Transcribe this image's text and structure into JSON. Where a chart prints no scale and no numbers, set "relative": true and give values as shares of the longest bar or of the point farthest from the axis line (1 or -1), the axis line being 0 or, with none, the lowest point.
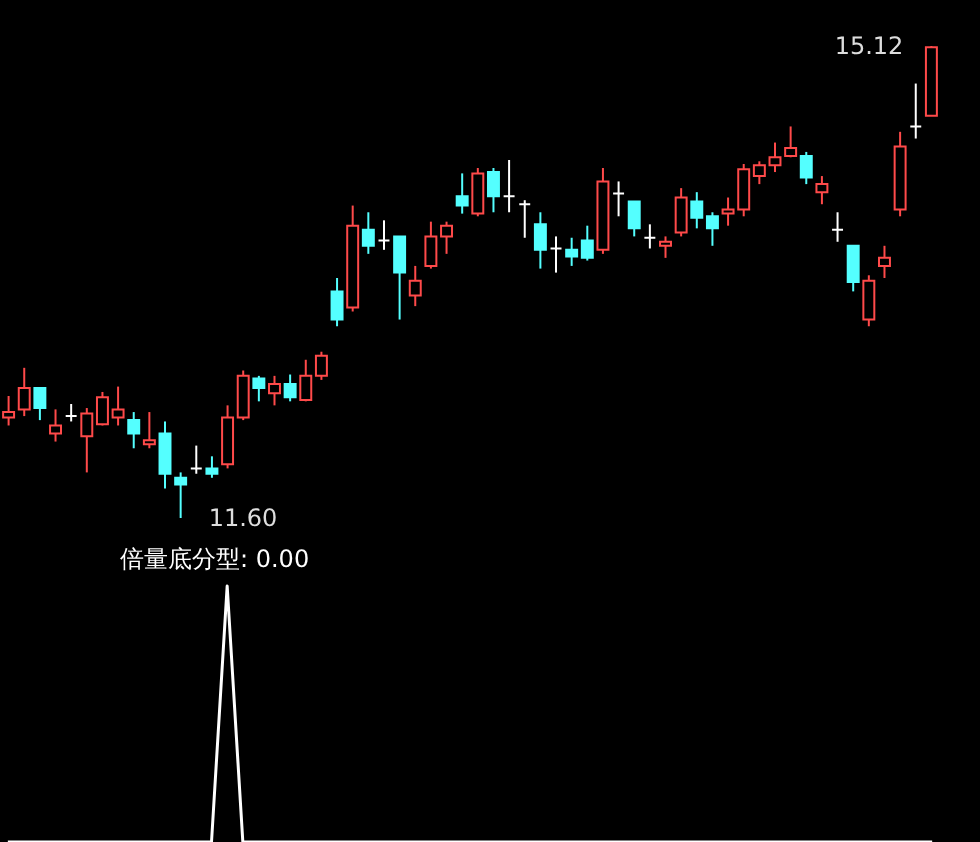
{
  "chart_data": [
    {
      "type": "candlestick",
      "categories": [
        null,
        null,
        null,
        null,
        null,
        null,
        null,
        null,
        null,
        null,
        null,
        null,
        null,
        null,
        null,
        null,
        null,
        null,
        null,
        null,
        null,
        null,
        null,
        null,
        null,
        null,
        null,
        null,
        null,
        null,
        null,
        null,
        null,
        null,
        null,
        null,
        null,
        null,
        null,
        null,
        null,
        null,
        null,
        null,
        null,
        null,
        null,
        null,
        null,
        null,
        null,
        null,
        null,
        null,
        null,
        null,
        null,
        null,
        null,
        null
      ],
      "ohlc": [
        [
          12.35,
          12.51,
          12.29,
          12.39
        ],
        [
          12.41,
          12.72,
          12.36,
          12.57
        ],
        [
          12.57,
          12.57,
          12.33,
          12.42
        ],
        [
          12.23,
          12.41,
          12.17,
          12.29
        ],
        [
          12.36,
          12.45,
          12.32,
          12.36
        ],
        [
          12.21,
          12.42,
          11.94,
          12.38
        ],
        [
          12.3,
          12.54,
          12.29,
          12.5
        ],
        [
          12.35,
          12.58,
          12.29,
          12.41
        ],
        [
          12.33,
          12.39,
          12.12,
          12.23
        ],
        [
          12.15,
          12.39,
          12.12,
          12.18
        ],
        [
          12.23,
          12.32,
          11.82,
          11.93
        ],
        [
          11.9,
          11.94,
          11.6,
          11.85
        ],
        [
          11.97,
          12.14,
          11.93,
          11.97
        ],
        [
          11.97,
          12.06,
          11.9,
          11.93
        ],
        [
          12.0,
          12.44,
          11.97,
          12.35
        ],
        [
          12.35,
          12.7,
          12.33,
          12.66
        ],
        [
          12.64,
          12.66,
          12.47,
          12.57
        ],
        [
          12.53,
          12.66,
          12.44,
          12.6
        ],
        [
          12.6,
          12.67,
          12.47,
          12.5
        ],
        [
          12.48,
          12.78,
          12.47,
          12.66
        ],
        [
          12.66,
          12.84,
          12.63,
          12.81
        ],
        [
          13.29,
          13.39,
          13.03,
          13.08
        ],
        [
          13.17,
          13.93,
          13.14,
          13.78
        ],
        [
          13.75,
          13.88,
          13.57,
          13.63
        ],
        [
          13.67,
          13.82,
          13.6,
          13.67
        ],
        [
          13.7,
          13.7,
          13.08,
          13.43
        ],
        [
          13.26,
          13.48,
          13.18,
          13.37
        ],
        [
          13.48,
          13.81,
          13.46,
          13.7
        ],
        [
          13.7,
          13.81,
          13.57,
          13.78
        ],
        [
          14.0,
          14.17,
          13.87,
          13.93
        ],
        [
          13.87,
          14.21,
          13.85,
          14.17
        ],
        [
          14.18,
          14.21,
          13.88,
          14.0
        ],
        [
          14.0,
          14.27,
          13.88,
          14.0
        ],
        [
          13.94,
          13.97,
          13.69,
          13.94
        ],
        [
          13.79,
          13.88,
          13.46,
          13.6
        ],
        [
          13.61,
          13.7,
          13.43,
          13.61
        ],
        [
          13.6,
          13.69,
          13.48,
          13.55
        ],
        [
          13.67,
          13.78,
          13.52,
          13.54
        ],
        [
          13.6,
          14.21,
          13.57,
          14.11
        ],
        [
          14.02,
          14.11,
          13.85,
          14.02
        ],
        [
          13.96,
          13.96,
          13.7,
          13.76
        ],
        [
          13.69,
          13.79,
          13.61,
          13.69
        ],
        [
          13.63,
          13.7,
          13.54,
          13.66
        ],
        [
          13.73,
          14.06,
          13.7,
          13.99
        ],
        [
          13.96,
          14.03,
          13.76,
          13.84
        ],
        [
          13.85,
          13.88,
          13.63,
          13.76
        ],
        [
          13.87,
          13.99,
          13.78,
          13.9
        ],
        [
          13.9,
          14.24,
          13.85,
          14.2
        ],
        [
          14.15,
          14.26,
          14.09,
          14.23
        ],
        [
          14.23,
          14.4,
          14.18,
          14.29
        ],
        [
          14.3,
          14.52,
          14.29,
          14.36
        ],
        [
          14.3,
          14.33,
          14.09,
          14.14
        ],
        [
          14.03,
          14.15,
          13.94,
          14.09
        ],
        [
          13.75,
          13.88,
          13.66,
          13.75
        ],
        [
          13.63,
          13.63,
          13.29,
          13.36
        ],
        [
          13.08,
          13.41,
          13.03,
          13.37
        ],
        [
          13.48,
          13.63,
          13.39,
          13.54
        ],
        [
          13.9,
          14.48,
          13.85,
          14.37
        ],
        [
          14.52,
          14.84,
          14.43,
          14.52
        ],
        [
          14.6,
          15.12,
          14.6,
          15.11
        ]
      ],
      "annotations": [
        "15.12",
        "11.60"
      ]
    },
    {
      "type": "line",
      "relative": true,
      "title": "倍量底分型: 0.00",
      "categories": [
        null,
        null,
        null,
        null,
        null,
        null,
        null,
        null,
        null,
        null,
        null,
        null,
        null,
        null,
        null,
        null,
        null,
        null,
        null,
        null,
        null,
        null,
        null,
        null,
        null,
        null,
        null,
        null,
        null,
        null,
        null,
        null,
        null,
        null,
        null,
        null,
        null,
        null,
        null,
        null,
        null,
        null,
        null,
        null,
        null,
        null,
        null,
        null,
        null,
        null,
        null,
        null,
        null,
        null,
        null,
        null,
        null,
        null,
        null,
        null
      ],
      "series": [
        {
          "color": "#ffffff",
          "values": [
            0,
            0,
            0,
            0,
            0,
            0,
            0,
            0,
            0,
            0,
            0,
            0,
            0,
            0,
            1,
            0,
            0,
            0,
            0,
            0,
            0,
            0,
            0,
            0,
            0,
            0,
            0,
            0,
            0,
            0,
            0,
            0,
            0,
            0,
            0,
            0,
            0,
            0,
            0,
            0,
            0,
            0,
            0,
            0,
            0,
            0,
            0,
            0,
            0,
            0,
            0,
            0,
            0,
            0,
            0,
            0,
            0,
            0,
            0,
            0
          ]
        }
      ]
    }
  ]
}
